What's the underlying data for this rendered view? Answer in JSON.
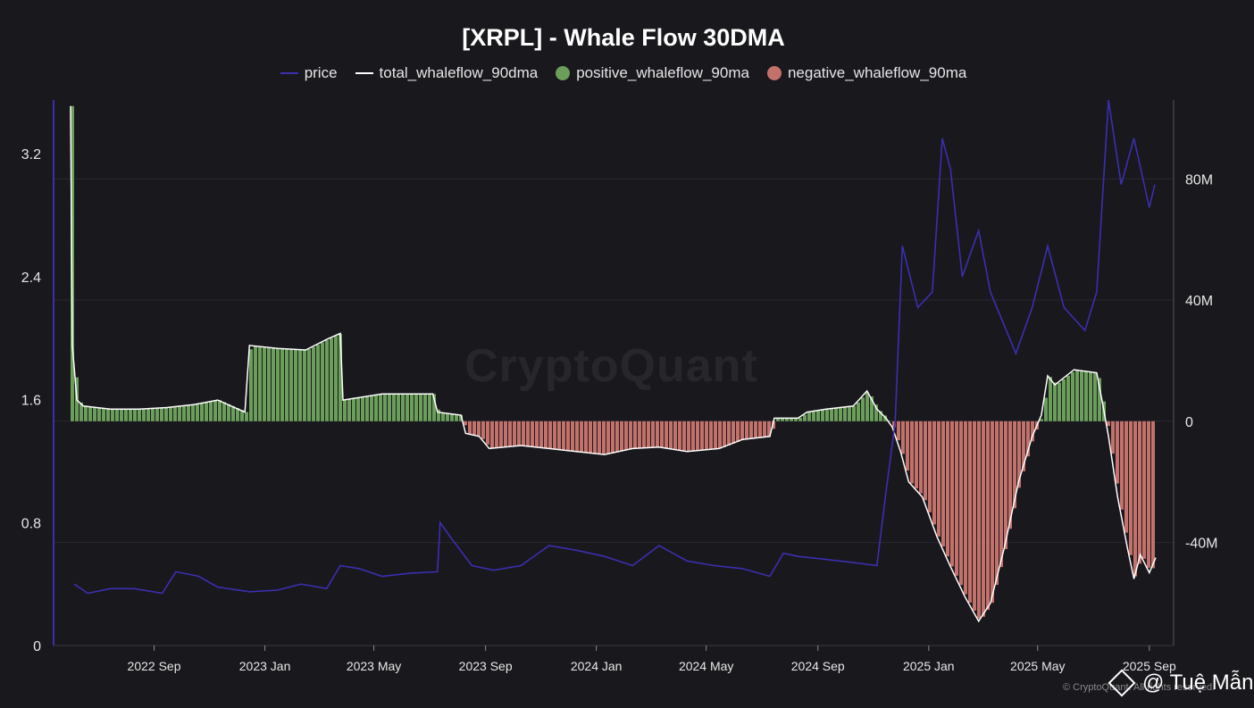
{
  "chart_data": {
    "type": "line",
    "title": "[XRPL] - Whale Flow 30DMA",
    "legend": [
      {
        "name": "price",
        "color": "#3b2fb0",
        "marker": "line"
      },
      {
        "name": "total_whaleflow_90dma",
        "color": "#ffffff",
        "marker": "line"
      },
      {
        "name": "positive_whaleflow_90ma",
        "color": "#6a9e5a",
        "marker": "dot"
      },
      {
        "name": "negative_whaleflow_90ma",
        "color": "#c2716b",
        "marker": "dot"
      }
    ],
    "legend_position": "top-center",
    "x_ticks": [
      "2022 Sep",
      "2023 Jan",
      "2023 May",
      "2023 Sep",
      "2024 Jan",
      "2024 May",
      "2024 Sep",
      "2025 Jan",
      "2025 May",
      "2025 Sep"
    ],
    "x_range": [
      "2022-06-01",
      "2025-09-10"
    ],
    "y_left": {
      "ticks": [
        "0",
        "0.8",
        "1.6",
        "2.4",
        "3.2"
      ],
      "range": [
        0,
        3.55
      ]
    },
    "y_right": {
      "ticks": [
        "-40M",
        "0",
        "40M",
        "80M"
      ],
      "range": [
        -74,
        106
      ]
    },
    "grid": "horizontal",
    "series": [
      {
        "name": "price",
        "axis": "left",
        "points": [
          [
            "2022-06-05",
            0.4
          ],
          [
            "2022-06-20",
            0.34
          ],
          [
            "2022-07-15",
            0.37
          ],
          [
            "2022-08-10",
            0.37
          ],
          [
            "2022-09-10",
            0.34
          ],
          [
            "2022-09-25",
            0.48
          ],
          [
            "2022-10-20",
            0.45
          ],
          [
            "2022-11-10",
            0.38
          ],
          [
            "2022-12-15",
            0.35
          ],
          [
            "2023-01-15",
            0.36
          ],
          [
            "2023-02-10",
            0.4
          ],
          [
            "2023-03-10",
            0.37
          ],
          [
            "2023-03-25",
            0.52
          ],
          [
            "2023-04-15",
            0.5
          ],
          [
            "2023-05-10",
            0.45
          ],
          [
            "2023-06-10",
            0.47
          ],
          [
            "2023-07-10",
            0.48
          ],
          [
            "2023-07-13",
            0.8
          ],
          [
            "2023-07-25",
            0.7
          ],
          [
            "2023-08-17",
            0.52
          ],
          [
            "2023-09-10",
            0.49
          ],
          [
            "2023-10-10",
            0.52
          ],
          [
            "2023-11-10",
            0.65
          ],
          [
            "2023-12-10",
            0.62
          ],
          [
            "2024-01-10",
            0.58
          ],
          [
            "2024-02-10",
            0.52
          ],
          [
            "2024-03-10",
            0.65
          ],
          [
            "2024-04-10",
            0.55
          ],
          [
            "2024-05-10",
            0.52
          ],
          [
            "2024-06-10",
            0.5
          ],
          [
            "2024-07-10",
            0.45
          ],
          [
            "2024-07-25",
            0.6
          ],
          [
            "2024-08-10",
            0.58
          ],
          [
            "2024-09-10",
            0.56
          ],
          [
            "2024-10-10",
            0.54
          ],
          [
            "2024-11-05",
            0.52
          ],
          [
            "2024-11-15",
            1.0
          ],
          [
            "2024-11-25",
            1.45
          ],
          [
            "2024-12-03",
            2.6
          ],
          [
            "2024-12-20",
            2.2
          ],
          [
            "2025-01-05",
            2.3
          ],
          [
            "2025-01-16",
            3.3
          ],
          [
            "2025-01-25",
            3.1
          ],
          [
            "2025-02-07",
            2.4
          ],
          [
            "2025-02-25",
            2.7
          ],
          [
            "2025-03-10",
            2.3
          ],
          [
            "2025-04-07",
            1.9
          ],
          [
            "2025-04-25",
            2.2
          ],
          [
            "2025-05-12",
            2.6
          ],
          [
            "2025-05-30",
            2.2
          ],
          [
            "2025-06-22",
            2.05
          ],
          [
            "2025-07-05",
            2.3
          ],
          [
            "2025-07-18",
            3.55
          ],
          [
            "2025-08-01",
            3.0
          ],
          [
            "2025-08-15",
            3.3
          ],
          [
            "2025-09-01",
            2.85
          ],
          [
            "2025-09-07",
            3.0
          ]
        ]
      },
      {
        "name": "total_whaleflow_90dma",
        "axis": "right",
        "unit": "M",
        "points": [
          [
            "2022-06-01",
            104
          ],
          [
            "2022-06-03",
            25
          ],
          [
            "2022-06-08",
            7
          ],
          [
            "2022-06-15",
            5
          ],
          [
            "2022-07-15",
            4
          ],
          [
            "2022-08-15",
            4
          ],
          [
            "2022-09-15",
            4.5
          ],
          [
            "2022-10-15",
            5.5
          ],
          [
            "2022-11-10",
            7
          ],
          [
            "2022-12-10",
            3
          ],
          [
            "2022-12-15",
            25
          ],
          [
            "2023-01-15",
            24
          ],
          [
            "2023-02-15",
            23.5
          ],
          [
            "2023-03-10",
            27
          ],
          [
            "2023-03-25",
            29
          ],
          [
            "2023-03-28",
            7
          ],
          [
            "2023-05-10",
            9
          ],
          [
            "2023-06-10",
            9
          ],
          [
            "2023-07-05",
            9
          ],
          [
            "2023-07-10",
            3
          ],
          [
            "2023-08-05",
            2
          ],
          [
            "2023-08-10",
            -4
          ],
          [
            "2023-08-25",
            -5
          ],
          [
            "2023-09-05",
            -9
          ],
          [
            "2023-10-10",
            -8
          ],
          [
            "2023-11-10",
            -9
          ],
          [
            "2023-12-10",
            -10
          ],
          [
            "2024-01-10",
            -11
          ],
          [
            "2024-02-10",
            -9
          ],
          [
            "2024-03-10",
            -8.5
          ],
          [
            "2024-04-10",
            -10
          ],
          [
            "2024-05-15",
            -9
          ],
          [
            "2024-06-10",
            -6
          ],
          [
            "2024-07-10",
            -5
          ],
          [
            "2024-07-15",
            1
          ],
          [
            "2024-08-10",
            1
          ],
          [
            "2024-08-20",
            3
          ],
          [
            "2024-09-10",
            4
          ],
          [
            "2024-10-10",
            5
          ],
          [
            "2024-10-25",
            10
          ],
          [
            "2024-11-05",
            4
          ],
          [
            "2024-11-15",
            1
          ],
          [
            "2024-11-22",
            -2
          ],
          [
            "2024-12-01",
            -10
          ],
          [
            "2024-12-10",
            -20
          ],
          [
            "2024-12-25",
            -25
          ],
          [
            "2025-01-10",
            -38
          ],
          [
            "2025-01-25",
            -48
          ],
          [
            "2025-02-10",
            -58
          ],
          [
            "2025-02-25",
            -66
          ],
          [
            "2025-03-10",
            -60
          ],
          [
            "2025-03-25",
            -42
          ],
          [
            "2025-04-10",
            -20
          ],
          [
            "2025-04-25",
            -5
          ],
          [
            "2025-05-05",
            2
          ],
          [
            "2025-05-12",
            15
          ],
          [
            "2025-05-20",
            12
          ],
          [
            "2025-06-10",
            17
          ],
          [
            "2025-07-05",
            16
          ],
          [
            "2025-07-12",
            5
          ],
          [
            "2025-07-18",
            -5
          ],
          [
            "2025-07-28",
            -25
          ],
          [
            "2025-08-08",
            -42
          ],
          [
            "2025-08-15",
            -52
          ],
          [
            "2025-08-22",
            -44
          ],
          [
            "2025-09-01",
            -50
          ],
          [
            "2025-09-08",
            -45
          ]
        ]
      }
    ]
  },
  "watermark": "CryptoQuant",
  "copyright": "© CryptoQuant. All rights reserved.",
  "author": "@ Tuệ Mẫn",
  "colors": {
    "background": "#19181d",
    "price": "#3b2fb0",
    "flow_line": "#ffffff",
    "positive": "#6a9e5a",
    "negative": "#c2716b",
    "grid": "#2a2930"
  }
}
